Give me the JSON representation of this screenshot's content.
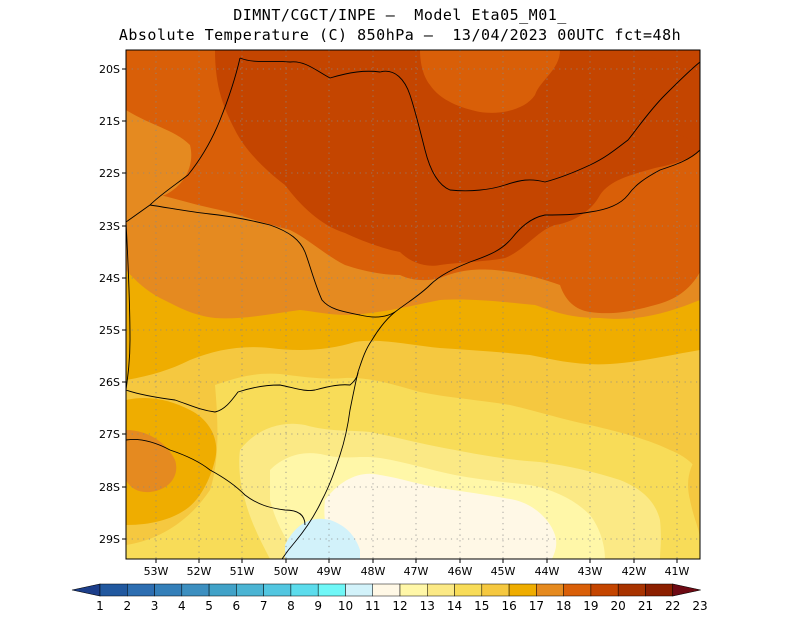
{
  "header": {
    "line1": "DIMNT/CGCT/INPE –  Model Eta05_M01_",
    "line2": "Absolute Temperature (C) 850hPa –  13/04/2023 00UTC fct=48h"
  },
  "map": {
    "lat_labels": [
      "20S",
      "21S",
      "22S",
      "23S",
      "24S",
      "25S",
      "26S",
      "27S",
      "28S",
      "29S"
    ],
    "lon_labels": [
      "53W",
      "52W",
      "51W",
      "50W",
      "49W",
      "48W",
      "47W",
      "46W",
      "45W",
      "44W",
      "43W",
      "42W",
      "41W"
    ],
    "colors": {
      "t19_20": "#c44500",
      "t18_19": "#d95f08",
      "t17_18": "#e58a20",
      "t16_17": "#efad00",
      "t15_16": "#f5c840",
      "t14_15": "#f8dc58",
      "t13_14": "#fbe985",
      "t12_13": "#fff7a8",
      "t11_12": "#fff8e6",
      "t10_11": "#d2f2fa"
    }
  },
  "colorbar": {
    "labels": [
      "1",
      "2",
      "3",
      "4",
      "5",
      "6",
      "7",
      "8",
      "9",
      "10",
      "11",
      "12",
      "13",
      "14",
      "15",
      "16",
      "17",
      "18",
      "19",
      "20",
      "21",
      "22",
      "23"
    ],
    "colors": [
      "#1c3e8a",
      "#21589f",
      "#2d6eb1",
      "#347fb9",
      "#3c8fc0",
      "#41a2c8",
      "#4bb4d3",
      "#52c6e0",
      "#5cdcec",
      "#6ff7f7",
      "#d2f2fa",
      "#fff8e6",
      "#fff7a8",
      "#fbe985",
      "#f8dc58",
      "#f5c840",
      "#efad00",
      "#e58a20",
      "#d95f08",
      "#c44500",
      "#a83300",
      "#8c1f00",
      "#6e0a14"
    ]
  }
}
